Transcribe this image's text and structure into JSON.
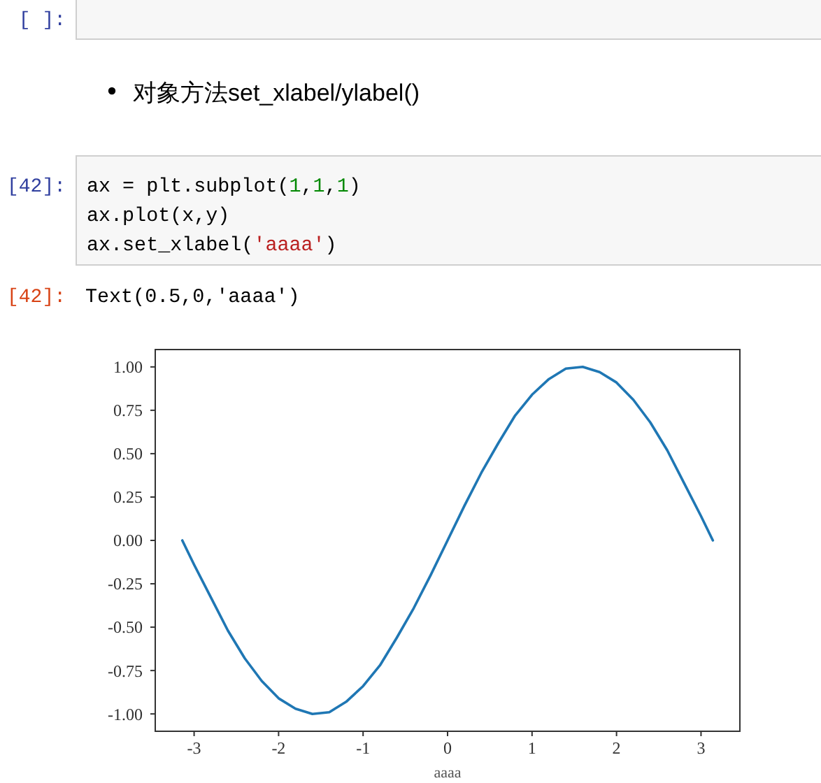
{
  "chart_data": {
    "type": "line",
    "xlabel": "aaaa",
    "x": [
      -3.14,
      -3.0,
      -2.8,
      -2.6,
      -2.4,
      -2.2,
      -2.0,
      -1.8,
      -1.6,
      -1.4,
      -1.2,
      -1.0,
      -0.8,
      -0.6,
      -0.4,
      -0.2,
      0,
      0.2,
      0.4,
      0.6,
      0.8,
      1.0,
      1.2,
      1.4,
      1.6,
      1.8,
      2.0,
      2.2,
      2.4,
      2.6,
      2.8,
      3.0,
      3.14
    ],
    "values": [
      0.0,
      -0.14,
      -0.33,
      -0.52,
      -0.68,
      -0.81,
      -0.91,
      -0.97,
      -1.0,
      -0.99,
      -0.93,
      -0.84,
      -0.72,
      -0.56,
      -0.39,
      -0.2,
      0.0,
      0.2,
      0.39,
      0.56,
      0.72,
      0.84,
      0.93,
      0.99,
      1.0,
      0.97,
      0.91,
      0.81,
      0.68,
      0.52,
      0.33,
      0.14,
      0.0
    ],
    "color": "#1f77b4",
    "xlim": [
      -3.46,
      3.46
    ],
    "xticks": [
      -3,
      -2,
      -1,
      0,
      1,
      2,
      3
    ],
    "ylim": [
      -1.1,
      1.1
    ],
    "yticks": [
      {
        "value": -1,
        "label": "-1.00"
      },
      {
        "value": -0.75,
        "label": "-0.75"
      },
      {
        "value": -0.5,
        "label": "-0.50"
      },
      {
        "value": -0.25,
        "label": "-0.25"
      },
      {
        "value": 0,
        "label": "0.00"
      },
      {
        "value": 0.25,
        "label": "0.25"
      },
      {
        "value": 0.5,
        "label": "0.50"
      },
      {
        "value": 0.75,
        "label": "0.75"
      },
      {
        "value": 1,
        "label": "1.00"
      }
    ],
    "annotations": [
      "[ ]:",
      "对象方法set_xlabel/ylabel()",
      "[42]:",
      "ax = plt.subplot(1,1,1)",
      "ax.plot(x,y)",
      "ax.set_xlabel('aaaa')",
      "[42]:",
      "Text(0.5,0,'aaaa')"
    ]
  }
}
